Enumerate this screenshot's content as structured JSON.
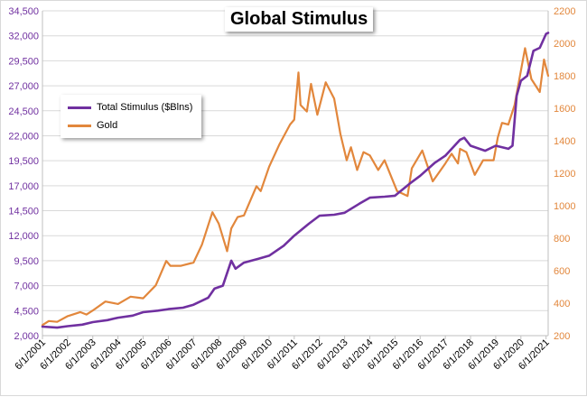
{
  "chart_data": {
    "type": "line",
    "title": "Global Stimulus",
    "left_axis": {
      "range": [
        2000,
        34500
      ],
      "tick_labels": [
        "2,000",
        "4,500",
        "7,000",
        "9,500",
        "12,000",
        "14,500",
        "17,000",
        "19,500",
        "22,000",
        "24,500",
        "27,000",
        "29,500",
        "32,000",
        "34,500"
      ],
      "tick_values": [
        2000,
        4500,
        7000,
        9500,
        12000,
        14500,
        17000,
        19500,
        22000,
        24500,
        27000,
        29500,
        32000,
        34500
      ],
      "color": "#7030a0"
    },
    "right_axis": {
      "range": [
        200,
        2200
      ],
      "tick_labels": [
        "200",
        "400",
        "600",
        "800",
        "1000",
        "1200",
        "1400",
        "1600",
        "1800",
        "2000",
        "2200"
      ],
      "tick_values": [
        200,
        400,
        600,
        800,
        1000,
        1200,
        1400,
        1600,
        1800,
        2000,
        2200
      ],
      "color": "#e2873c"
    },
    "x_axis": {
      "tick_labels": [
        "6/1/2001",
        "6/1/2002",
        "6/1/2003",
        "6/1/2004",
        "6/1/2005",
        "6/1/2006",
        "6/1/2007",
        "6/1/2008",
        "6/1/2009",
        "6/1/2010",
        "6/1/2011",
        "6/1/2012",
        "6/1/2013",
        "6/1/2014",
        "6/1/2015",
        "6/1/2016",
        "6/1/2017",
        "6/1/2018",
        "6/1/2019",
        "6/1/2020",
        "6/1/2021"
      ],
      "range": [
        "2001-06",
        "2021-07"
      ]
    },
    "grid": "horizontal",
    "legend_position": "upper-left",
    "series": [
      {
        "name": "Total Stimulus ($Blns)",
        "axis": "left",
        "color": "#7030a0",
        "points": [
          [
            "2001-06",
            2900
          ],
          [
            "2002-01",
            2800
          ],
          [
            "2002-06",
            2950
          ],
          [
            "2003-01",
            3100
          ],
          [
            "2003-06",
            3350
          ],
          [
            "2004-01",
            3550
          ],
          [
            "2004-06",
            3800
          ],
          [
            "2005-01",
            4000
          ],
          [
            "2005-06",
            4350
          ],
          [
            "2006-01",
            4500
          ],
          [
            "2006-06",
            4650
          ],
          [
            "2007-01",
            4800
          ],
          [
            "2007-06",
            5100
          ],
          [
            "2008-01",
            5800
          ],
          [
            "2008-04",
            6700
          ],
          [
            "2008-08",
            7000
          ],
          [
            "2008-12",
            9500
          ],
          [
            "2009-02",
            8700
          ],
          [
            "2009-06",
            9300
          ],
          [
            "2010-01",
            9700
          ],
          [
            "2010-06",
            10000
          ],
          [
            "2011-01",
            11000
          ],
          [
            "2011-06",
            12000
          ],
          [
            "2012-01",
            13200
          ],
          [
            "2012-06",
            14000
          ],
          [
            "2013-01",
            14100
          ],
          [
            "2013-06",
            14300
          ],
          [
            "2014-01",
            15200
          ],
          [
            "2014-06",
            15800
          ],
          [
            "2015-01",
            15900
          ],
          [
            "2015-06",
            16000
          ],
          [
            "2016-01",
            17200
          ],
          [
            "2016-06",
            18000
          ],
          [
            "2017-01",
            19300
          ],
          [
            "2017-06",
            20000
          ],
          [
            "2018-01",
            21600
          ],
          [
            "2018-03",
            21800
          ],
          [
            "2018-06",
            21000
          ],
          [
            "2019-01",
            20500
          ],
          [
            "2019-06",
            21000
          ],
          [
            "2019-12",
            20700
          ],
          [
            "2020-02",
            21000
          ],
          [
            "2020-04",
            26000
          ],
          [
            "2020-06",
            27500
          ],
          [
            "2020-09",
            28000
          ],
          [
            "2020-12",
            30500
          ],
          [
            "2021-03",
            30800
          ],
          [
            "2021-06",
            32200
          ],
          [
            "2021-07",
            32300
          ]
        ]
      },
      {
        "name": "Gold",
        "axis": "right",
        "color": "#e2873c",
        "points": [
          [
            "2001-06",
            265
          ],
          [
            "2001-09",
            290
          ],
          [
            "2002-01",
            285
          ],
          [
            "2002-06",
            320
          ],
          [
            "2002-12",
            345
          ],
          [
            "2003-03",
            330
          ],
          [
            "2003-06",
            355
          ],
          [
            "2003-12",
            410
          ],
          [
            "2004-06",
            395
          ],
          [
            "2004-12",
            440
          ],
          [
            "2005-06",
            430
          ],
          [
            "2005-12",
            510
          ],
          [
            "2006-05",
            660
          ],
          [
            "2006-07",
            630
          ],
          [
            "2006-12",
            630
          ],
          [
            "2007-06",
            650
          ],
          [
            "2007-10",
            760
          ],
          [
            "2008-03",
            960
          ],
          [
            "2008-06",
            890
          ],
          [
            "2008-10",
            720
          ],
          [
            "2008-12",
            860
          ],
          [
            "2009-03",
            930
          ],
          [
            "2009-06",
            940
          ],
          [
            "2009-12",
            1120
          ],
          [
            "2010-02",
            1090
          ],
          [
            "2010-06",
            1240
          ],
          [
            "2010-11",
            1380
          ],
          [
            "2011-04",
            1500
          ],
          [
            "2011-06",
            1530
          ],
          [
            "2011-08",
            1820
          ],
          [
            "2011-09",
            1620
          ],
          [
            "2011-12",
            1580
          ],
          [
            "2012-02",
            1750
          ],
          [
            "2012-05",
            1560
          ],
          [
            "2012-09",
            1760
          ],
          [
            "2013-01",
            1660
          ],
          [
            "2013-04",
            1440
          ],
          [
            "2013-07",
            1280
          ],
          [
            "2013-09",
            1360
          ],
          [
            "2013-12",
            1220
          ],
          [
            "2014-03",
            1330
          ],
          [
            "2014-06",
            1310
          ],
          [
            "2014-10",
            1220
          ],
          [
            "2015-01",
            1280
          ],
          [
            "2015-07",
            1090
          ],
          [
            "2015-12",
            1060
          ],
          [
            "2016-02",
            1230
          ],
          [
            "2016-07",
            1340
          ],
          [
            "2016-12",
            1150
          ],
          [
            "2017-06",
            1260
          ],
          [
            "2017-09",
            1320
          ],
          [
            "2017-12",
            1260
          ],
          [
            "2018-01",
            1350
          ],
          [
            "2018-04",
            1330
          ],
          [
            "2018-08",
            1190
          ],
          [
            "2018-12",
            1280
          ],
          [
            "2019-05",
            1280
          ],
          [
            "2019-07",
            1420
          ],
          [
            "2019-09",
            1510
          ],
          [
            "2019-12",
            1500
          ],
          [
            "2020-03",
            1620
          ],
          [
            "2020-08",
            1970
          ],
          [
            "2020-11",
            1780
          ],
          [
            "2021-03",
            1700
          ],
          [
            "2021-05",
            1900
          ],
          [
            "2021-07",
            1800
          ]
        ]
      }
    ]
  }
}
